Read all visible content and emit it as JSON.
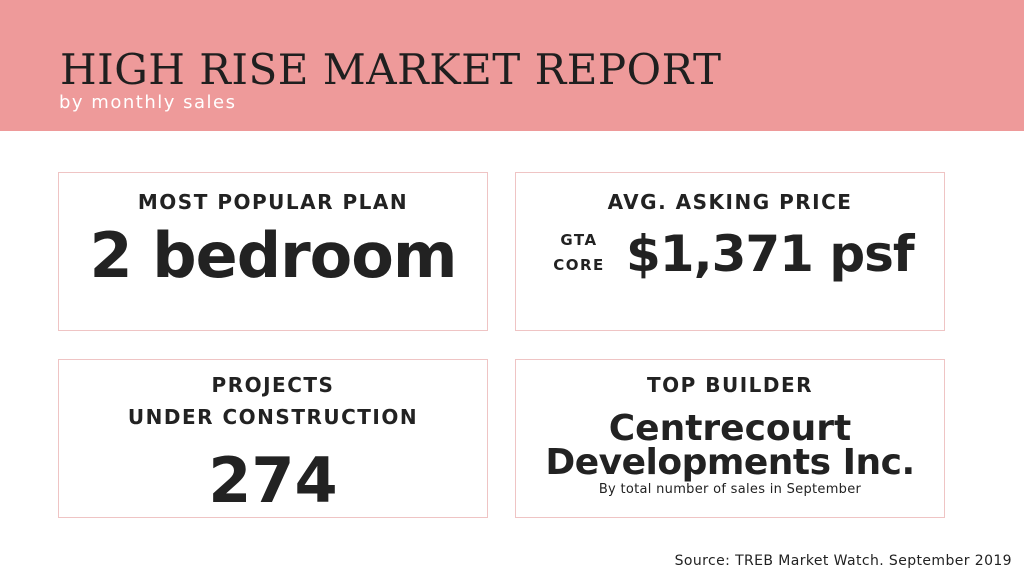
{
  "header": {
    "title": "HIGH RISE MARKET REPORT",
    "subtitle": "by monthly sales"
  },
  "cards": {
    "plan": {
      "label": "MOST POPULAR PLAN",
      "value": "2 bedroom"
    },
    "price": {
      "label": "AVG. ASKING PRICE",
      "region_line1": "GTA",
      "region_line2": "CORE",
      "value": "$1,371 psf"
    },
    "projects": {
      "label_line1": "PROJECTS",
      "label_line2": "UNDER CONSTRUCTION",
      "value": "274"
    },
    "builder": {
      "label": "TOP BUILDER",
      "name_line1": "Centrecourt",
      "name_line2": "Developments Inc.",
      "note": "By total number of sales in September"
    }
  },
  "footer": {
    "source": "Source: TREB Market Watch. September 2019"
  },
  "colors": {
    "header_background": "#ee9a9a",
    "card_border": "#efc4c4",
    "text": "#222222",
    "subtitle_text": "#ffffff"
  }
}
